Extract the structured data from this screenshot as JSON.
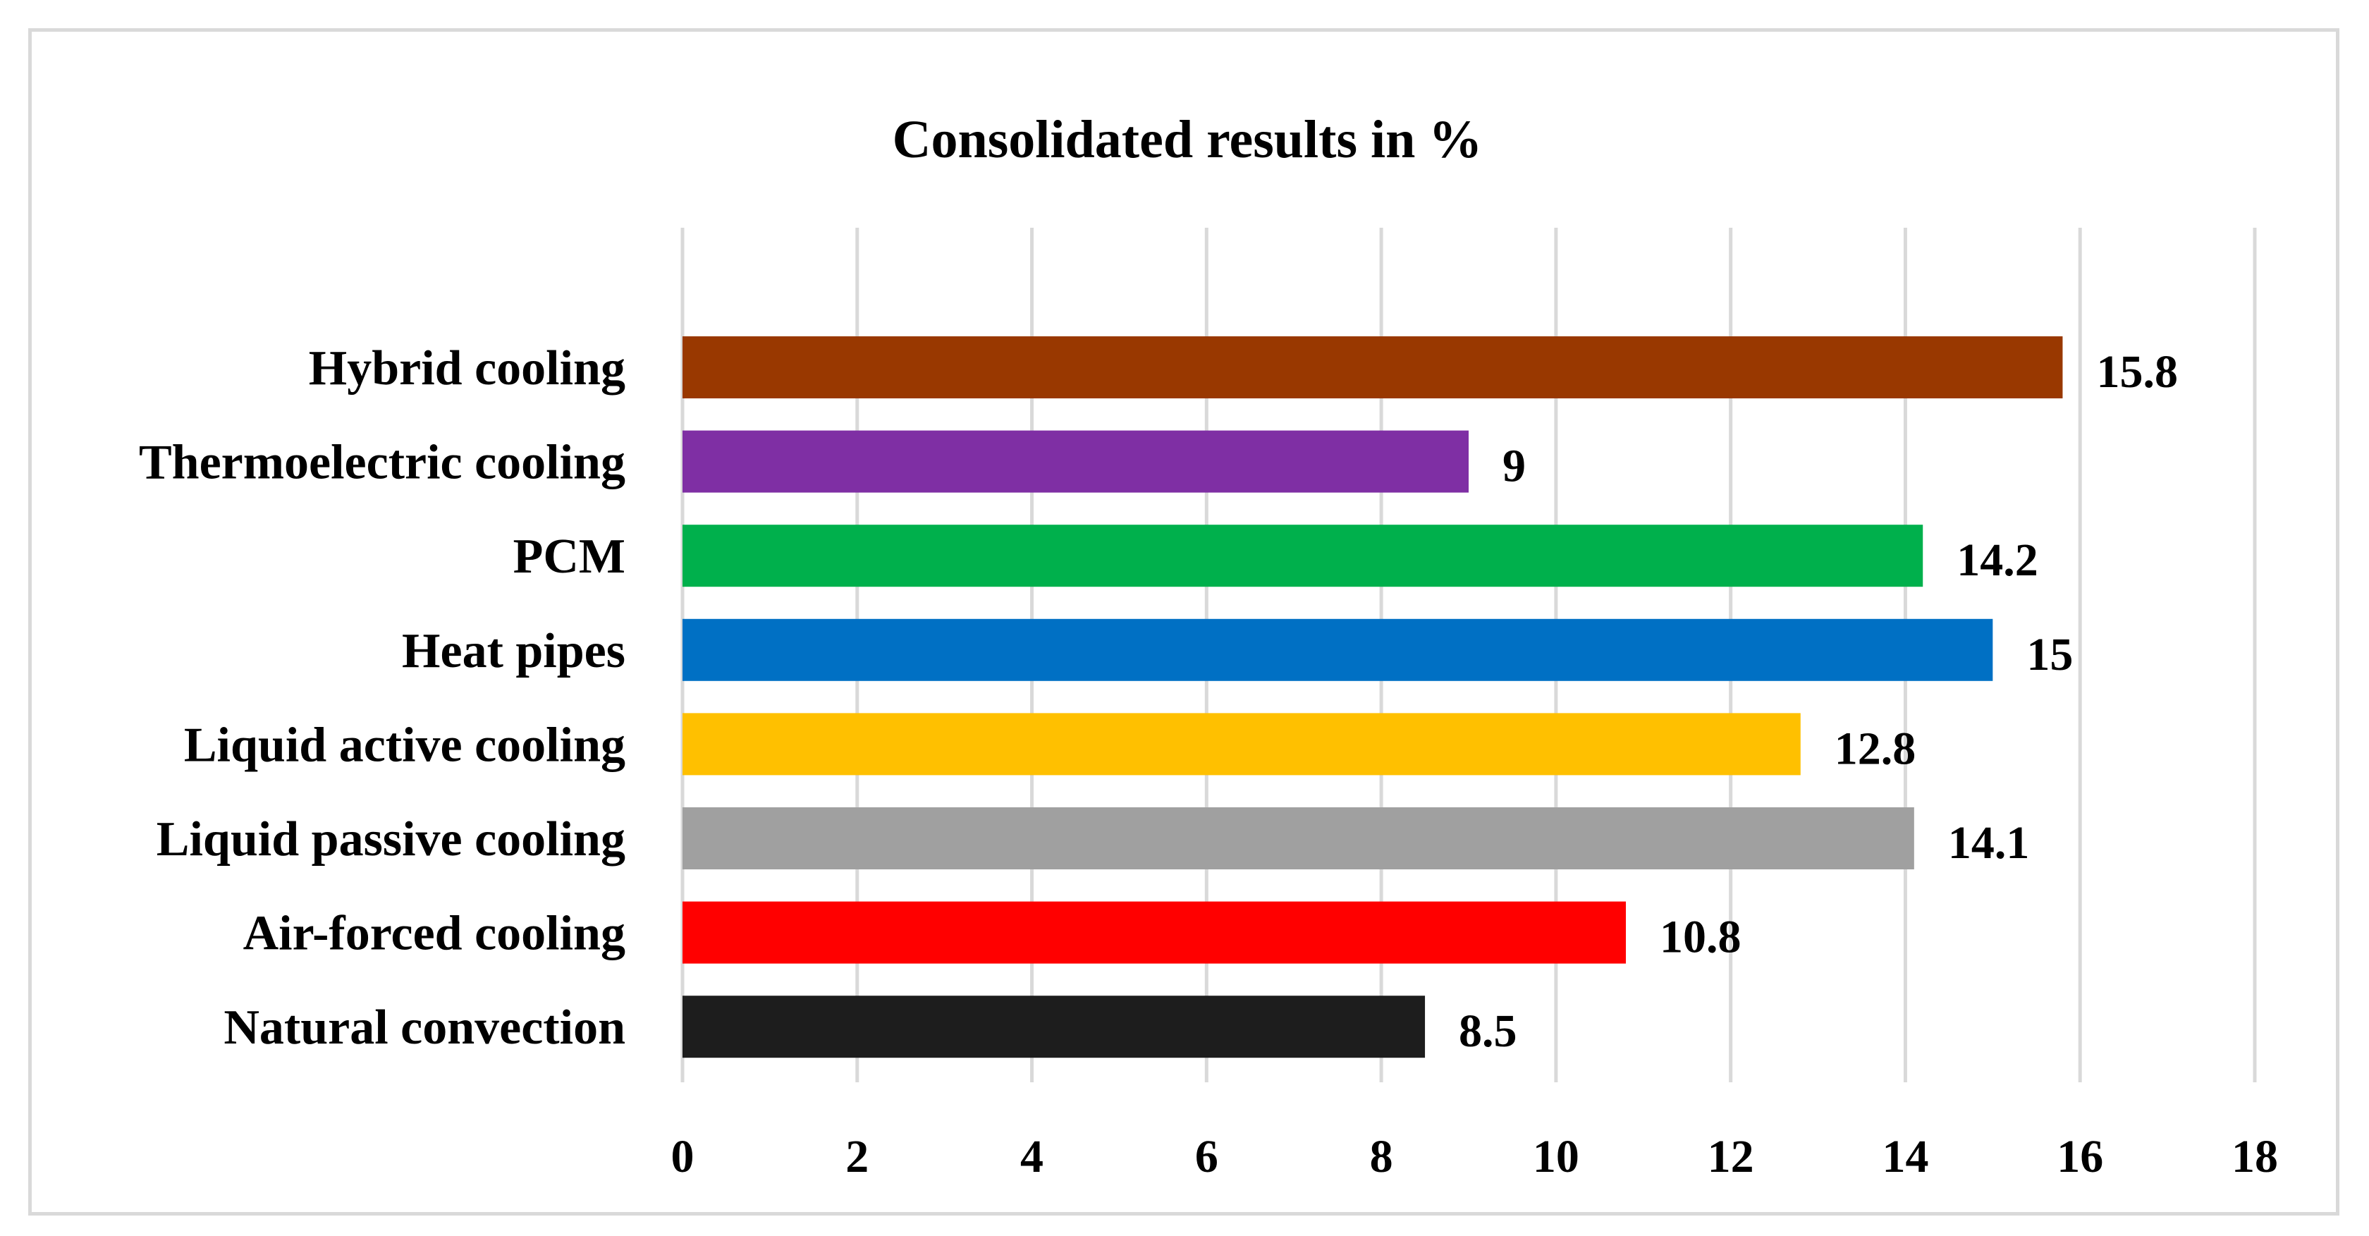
{
  "chart_data": {
    "type": "bar",
    "orientation": "horizontal",
    "title": "Consolidated results in %",
    "xlabel": "",
    "ylabel": "",
    "categories": [
      "Hybrid cooling",
      "Thermoelectric cooling",
      "PCM",
      "Heat pipes",
      "Liquid active cooling",
      "Liquid passive cooling",
      "Air-forced cooling",
      "Natural convection"
    ],
    "values": [
      15.8,
      9,
      14.2,
      15,
      12.8,
      14.1,
      10.8,
      8.5
    ],
    "value_labels": [
      "15.8",
      "9",
      "14.2",
      "15",
      "12.8",
      "14.1",
      "10.8",
      "8.5"
    ],
    "colors": [
      "#993800",
      "#7f2fa4",
      "#00b04c",
      "#0070c4",
      "#ffc000",
      "#a0a0a0",
      "#ff0000",
      "#1d1d1d"
    ],
    "xlim": [
      0,
      18
    ],
    "ticks": [
      "0",
      "2",
      "4",
      "6",
      "8",
      "10",
      "12",
      "14",
      "16",
      "18"
    ],
    "tick_values": [
      0,
      2,
      4,
      6,
      8,
      10,
      12,
      14,
      16,
      18
    ],
    "grid": true,
    "legend": "none"
  }
}
